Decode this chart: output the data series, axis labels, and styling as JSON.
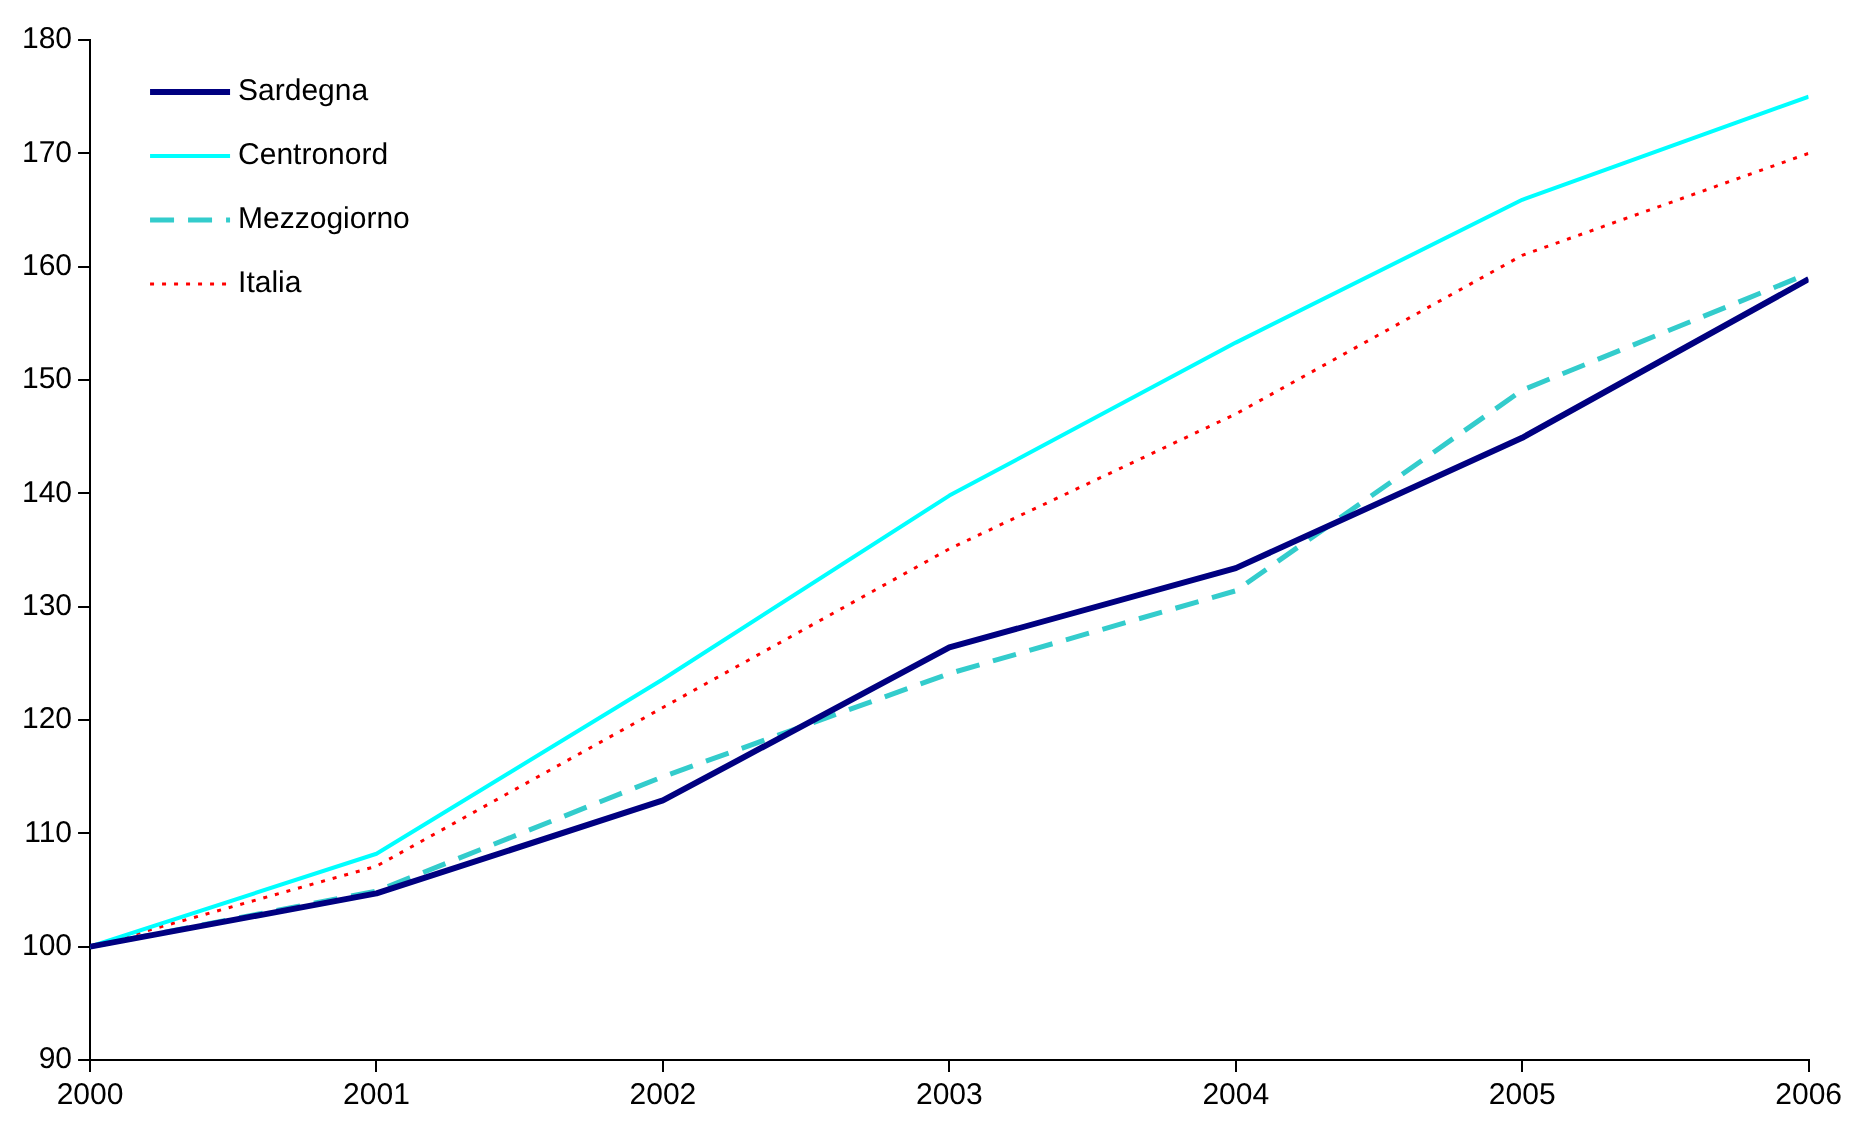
{
  "chart_data": {
    "type": "line",
    "x": [
      2000,
      2001,
      2002,
      2003,
      2004,
      2005,
      2006
    ],
    "xlim": [
      2000,
      2006
    ],
    "xticks": [
      2000,
      2001,
      2002,
      2003,
      2004,
      2005,
      2006
    ],
    "ylim": [
      90,
      180
    ],
    "yticks": [
      90,
      100,
      110,
      120,
      130,
      140,
      150,
      160,
      170,
      180
    ],
    "grid": false,
    "legend": "top left",
    "marker": "none",
    "series": [
      {
        "name": "Sardegna",
        "color": "#000080",
        "line_style": "solid",
        "values": [
          100,
          104.7,
          112.9,
          126.4,
          133.4,
          144.9,
          158.9
        ]
      },
      {
        "name": "Centronord",
        "color": "#00ffff",
        "line_style": "solid",
        "values": [
          100,
          108.2,
          123.6,
          139.8,
          153.3,
          165.9,
          175
        ]
      },
      {
        "name": "Mezzogiorno",
        "color": "#33cccc",
        "line_style": "dashed",
        "values": [
          100,
          104.9,
          115,
          124.1,
          131.4,
          149.1,
          159.4
        ]
      },
      {
        "name": "Italia",
        "color": "#ff0000",
        "line_style": "dotted",
        "values": [
          100,
          107.1,
          121.1,
          135.1,
          147,
          161,
          170
        ]
      }
    ]
  }
}
